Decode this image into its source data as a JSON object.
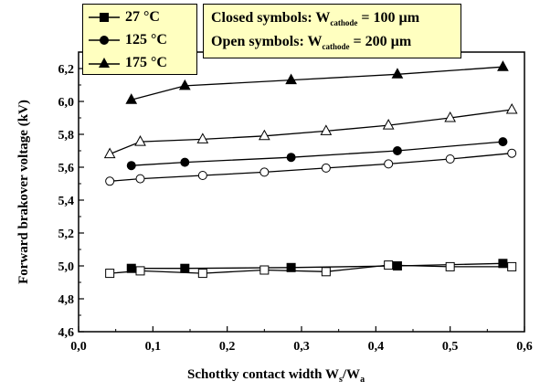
{
  "chart_data": {
    "type": "line",
    "xlabel": "Schottky contact width W",
    "xlabel_sub1": "s",
    "xlabel_mid": "/W",
    "xlabel_sub2": "a",
    "ylabel": "Forward brakover voltage (kV)",
    "xlim": [
      0.0,
      0.6
    ],
    "ylim": [
      4.6,
      6.3
    ],
    "xticks": [
      "0,0",
      "0,1",
      "0,2",
      "0,3",
      "0,4",
      "0,5",
      "0,6"
    ],
    "yticks": [
      "4,6",
      "4,8",
      "5,0",
      "5,2",
      "5,4",
      "5,6",
      "5,8",
      "6,0",
      "6,2"
    ],
    "xtick_values": [
      0.0,
      0.1,
      0.2,
      0.3,
      0.4,
      0.5,
      0.6
    ],
    "ytick_values": [
      4.6,
      4.8,
      5.0,
      5.2,
      5.4,
      5.6,
      5.8,
      6.0,
      6.2
    ],
    "grid": false,
    "legend_series": [
      {
        "label": "27 °C",
        "marker": "square"
      },
      {
        "label": "125 °C",
        "marker": "circle"
      },
      {
        "label": "175 °C",
        "marker": "triangle"
      }
    ],
    "legend_note": {
      "closed_prefix": "Closed symbols: W",
      "closed_sub": "cathode",
      "closed_suffix": " = 100 µm",
      "open_prefix": "Open symbols: W",
      "open_sub": "cathode",
      "open_suffix": " = 200 µm"
    },
    "series": [
      {
        "temp": "27 °C",
        "wcathode": "100 µm",
        "marker": "square",
        "filled": true,
        "x": [
          0.071,
          0.143,
          0.286,
          0.429,
          0.571
        ],
        "y": [
          4.985,
          4.985,
          4.99,
          5.0,
          5.015
        ]
      },
      {
        "temp": "27 °C",
        "wcathode": "200 µm",
        "marker": "square",
        "filled": false,
        "x": [
          0.042,
          0.083,
          0.167,
          0.25,
          0.333,
          0.417,
          0.5,
          0.583
        ],
        "y": [
          4.955,
          4.97,
          4.955,
          4.975,
          4.965,
          5.005,
          4.995,
          4.995
        ]
      },
      {
        "temp": "125 °C",
        "wcathode": "100 µm",
        "marker": "circle",
        "filled": true,
        "x": [
          0.071,
          0.143,
          0.286,
          0.429,
          0.571
        ],
        "y": [
          5.61,
          5.63,
          5.66,
          5.7,
          5.755
        ]
      },
      {
        "temp": "125 °C",
        "wcathode": "200 µm",
        "marker": "circle",
        "filled": false,
        "x": [
          0.042,
          0.083,
          0.167,
          0.25,
          0.333,
          0.417,
          0.5,
          0.583
        ],
        "y": [
          5.515,
          5.53,
          5.55,
          5.57,
          5.595,
          5.62,
          5.65,
          5.685
        ]
      },
      {
        "temp": "175 °C",
        "wcathode": "100 µm",
        "marker": "triangle",
        "filled": true,
        "x": [
          0.071,
          0.143,
          0.286,
          0.429,
          0.571
        ],
        "y": [
          6.01,
          6.095,
          6.13,
          6.165,
          6.21
        ]
      },
      {
        "temp": "175 °C",
        "wcathode": "200 µm",
        "marker": "triangle",
        "filled": false,
        "x": [
          0.042,
          0.083,
          0.167,
          0.25,
          0.333,
          0.417,
          0.5,
          0.583
        ],
        "y": [
          5.68,
          5.755,
          5.77,
          5.79,
          5.82,
          5.855,
          5.9,
          5.95
        ]
      }
    ]
  }
}
